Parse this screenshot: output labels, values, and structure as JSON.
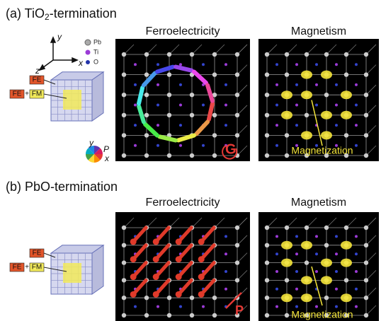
{
  "panels": [
    {
      "title": [
        "(a) TiO",
        "2",
        "-termination"
      ],
      "legend": [
        "Pb",
        "Ti",
        "O"
      ],
      "axes": [
        "y",
        "z",
        "x"
      ],
      "fe": "FE",
      "fe_fm": [
        "FE",
        "+",
        "FM"
      ],
      "ferro_title": "Ferroelectricity",
      "mag_title": "Magnetism",
      "wheel": [
        "y",
        "P",
        "x"
      ],
      "ferro_symbol": "G",
      "mag_label": "Magnetization"
    },
    {
      "title": [
        "(b) PbO-termination"
      ],
      "fe": "FE",
      "fe_fm": [
        "FE",
        "+",
        "FM"
      ],
      "ferro_title": "Ferroelectricity",
      "mag_title": "Magnetism",
      "ferro_symbol": "P",
      "mag_label": "Magnetization"
    }
  ]
}
